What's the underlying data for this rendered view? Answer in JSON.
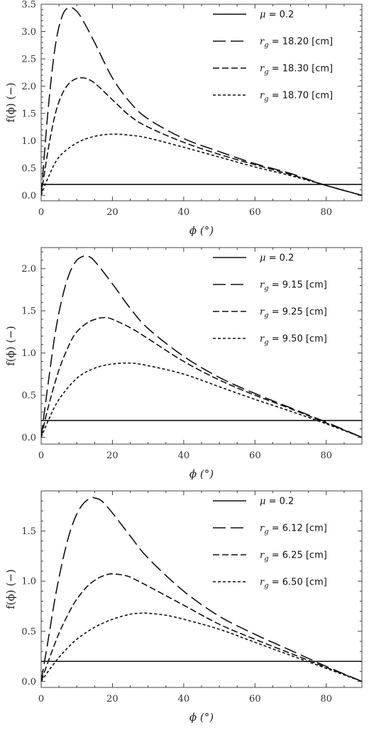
{
  "chart_data": [
    {
      "type": "line",
      "xlabel": "ϕ (°)",
      "ylabel": "f(ϕ) (−)",
      "xlim": [
        0,
        90
      ],
      "ylim": [
        -0.1,
        3.5
      ],
      "xticks": [
        0,
        20,
        40,
        60,
        80
      ],
      "yticks": [
        0.0,
        0.5,
        1.0,
        1.5,
        2.0,
        2.5,
        3.0,
        3.5
      ],
      "legend_position": "top-right",
      "grid": false,
      "series": [
        {
          "name": "μ = 0.2",
          "style": "solid",
          "x": [
            0,
            90
          ],
          "y": [
            0.2,
            0.2
          ]
        },
        {
          "name": "r_g = 18.20 [cm]",
          "style": "long-dash",
          "x": [
            0,
            2,
            4,
            6,
            8,
            10,
            12,
            15,
            20,
            25,
            30,
            40,
            50,
            60,
            70,
            80,
            90
          ],
          "y": [
            0,
            1.6,
            2.75,
            3.3,
            3.44,
            3.37,
            3.17,
            2.8,
            2.15,
            1.7,
            1.4,
            1.04,
            0.8,
            0.58,
            0.4,
            0.18,
            0
          ]
        },
        {
          "name": "r_g = 18.30 [cm]",
          "style": "medium-dash",
          "x": [
            0,
            2,
            4,
            6,
            8,
            10,
            12,
            14,
            16,
            20,
            25,
            30,
            40,
            50,
            60,
            70,
            80,
            90
          ],
          "y": [
            0,
            0.85,
            1.5,
            1.87,
            2.06,
            2.14,
            2.15,
            2.1,
            2.0,
            1.75,
            1.45,
            1.25,
            0.97,
            0.75,
            0.56,
            0.38,
            0.18,
            0
          ]
        },
        {
          "name": "r_g = 18.70 [cm]",
          "style": "short-dash",
          "x": [
            0,
            2,
            5,
            10,
            15,
            20,
            25,
            30,
            40,
            50,
            60,
            70,
            80,
            90
          ],
          "y": [
            0,
            0.33,
            0.7,
            0.96,
            1.08,
            1.12,
            1.1,
            1.05,
            0.88,
            0.7,
            0.52,
            0.36,
            0.18,
            0
          ]
        }
      ]
    },
    {
      "type": "line",
      "xlabel": "ϕ (°)",
      "ylabel": "f(ϕ) (−)",
      "xlim": [
        0,
        90
      ],
      "ylim": [
        -0.08,
        2.25
      ],
      "xticks": [
        0,
        20,
        40,
        60,
        80
      ],
      "yticks": [
        0.0,
        0.5,
        1.0,
        1.5,
        2.0
      ],
      "legend_position": "top-right",
      "grid": false,
      "series": [
        {
          "name": "μ = 0.2",
          "style": "solid",
          "x": [
            0,
            90
          ],
          "y": [
            0.2,
            0.2
          ]
        },
        {
          "name": "r_g = 9.15 [cm]",
          "style": "long-dash",
          "x": [
            0,
            2,
            4,
            6,
            8,
            10,
            12,
            13,
            15,
            20,
            25,
            30,
            40,
            50,
            60,
            70,
            80,
            90
          ],
          "y": [
            0,
            0.65,
            1.25,
            1.67,
            1.95,
            2.1,
            2.15,
            2.15,
            2.09,
            1.82,
            1.53,
            1.29,
            0.96,
            0.71,
            0.52,
            0.35,
            0.18,
            0
          ]
        },
        {
          "name": "r_g = 9.25 [cm]",
          "style": "medium-dash",
          "x": [
            0,
            2,
            5,
            8,
            10,
            13,
            16,
            18,
            20,
            25,
            30,
            40,
            50,
            60,
            70,
            80,
            90
          ],
          "y": [
            0,
            0.36,
            0.8,
            1.11,
            1.25,
            1.36,
            1.41,
            1.42,
            1.4,
            1.3,
            1.17,
            0.9,
            0.68,
            0.5,
            0.34,
            0.17,
            0
          ]
        },
        {
          "name": "r_g = 9.50 [cm]",
          "style": "short-dash",
          "x": [
            0,
            2,
            5,
            10,
            15,
            20,
            25,
            30,
            40,
            50,
            60,
            70,
            80,
            90
          ],
          "y": [
            0,
            0.2,
            0.45,
            0.7,
            0.82,
            0.87,
            0.88,
            0.85,
            0.75,
            0.6,
            0.45,
            0.31,
            0.16,
            0
          ]
        }
      ]
    },
    {
      "type": "line",
      "xlabel": "ϕ (°)",
      "ylabel": "f(ϕ) (−)",
      "xlim": [
        0,
        90
      ],
      "ylim": [
        -0.06,
        1.9
      ],
      "xticks": [
        0,
        20,
        40,
        60,
        80
      ],
      "yticks": [
        0.0,
        0.5,
        1.0,
        1.5
      ],
      "legend_position": "top-right",
      "grid": false,
      "series": [
        {
          "name": "μ = 0.2",
          "style": "solid",
          "x": [
            0,
            90
          ],
          "y": [
            0.2,
            0.2
          ]
        },
        {
          "name": "r_g = 6.12 [cm]",
          "style": "long-dash",
          "x": [
            0,
            2,
            4,
            6,
            8,
            10,
            12,
            14,
            15,
            17,
            20,
            25,
            30,
            40,
            50,
            60,
            70,
            80,
            90
          ],
          "y": [
            0,
            0.42,
            0.85,
            1.2,
            1.48,
            1.67,
            1.78,
            1.83,
            1.83,
            1.8,
            1.68,
            1.45,
            1.23,
            0.9,
            0.65,
            0.47,
            0.31,
            0.15,
            0
          ]
        },
        {
          "name": "r_g = 6.25 [cm]",
          "style": "medium-dash",
          "x": [
            0,
            2,
            5,
            8,
            10,
            13,
            16,
            19,
            21,
            23,
            25,
            30,
            40,
            50,
            60,
            70,
            80,
            90
          ],
          "y": [
            0,
            0.2,
            0.48,
            0.7,
            0.82,
            0.95,
            1.03,
            1.07,
            1.07,
            1.06,
            1.04,
            0.95,
            0.76,
            0.57,
            0.42,
            0.28,
            0.14,
            0
          ]
        },
        {
          "name": "r_g = 6.50 [cm]",
          "style": "short-dash",
          "x": [
            0,
            3,
            6,
            10,
            15,
            20,
            25,
            28,
            30,
            35,
            40,
            50,
            60,
            70,
            80,
            90
          ],
          "y": [
            0,
            0.15,
            0.28,
            0.42,
            0.54,
            0.62,
            0.67,
            0.68,
            0.68,
            0.66,
            0.62,
            0.52,
            0.39,
            0.26,
            0.13,
            0
          ]
        }
      ]
    }
  ]
}
